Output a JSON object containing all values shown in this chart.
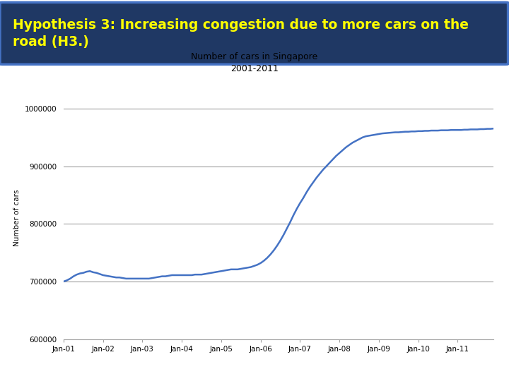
{
  "title_line1": "Number of cars in Singapore",
  "title_line2": "2001-2011",
  "ylabel": "Number of cars",
  "header_text": "Hypothesis 3: Increasing congestion due to more cars on the\nroad (H3.)",
  "header_bg_color": "#1F3864",
  "header_border_color": "#4472C4",
  "header_text_color": "#FFFF00",
  "line_color": "#4472C4",
  "line_width": 1.8,
  "ylim": [
    600000,
    1020000
  ],
  "yticks": [
    600000,
    700000,
    800000,
    900000,
    1000000
  ],
  "xtick_labels": [
    "Jan-01",
    "Jan-02",
    "Jan-03",
    "Jan-04",
    "Jan-05",
    "Jan-06",
    "Jan-07",
    "Jan-08",
    "Jan-09",
    "Jan-10",
    "Jan-11"
  ],
  "x_values": [
    0,
    1,
    2,
    3,
    4,
    5,
    6,
    7,
    8,
    9,
    10,
    11,
    12,
    13,
    14,
    15,
    16,
    17,
    18,
    19,
    20,
    21,
    22,
    23,
    24,
    25,
    26,
    27,
    28,
    29,
    30,
    31,
    32,
    33,
    34,
    35,
    36,
    37,
    38,
    39,
    40,
    41,
    42,
    43,
    44,
    45,
    46,
    47,
    48,
    49,
    50,
    51,
    52,
    53,
    54,
    55,
    56,
    57,
    58,
    59,
    60,
    61,
    62,
    63,
    64,
    65,
    66,
    67,
    68,
    69,
    70,
    71,
    72,
    73,
    74,
    75,
    76,
    77,
    78,
    79,
    80,
    81,
    82,
    83,
    84,
    85,
    86,
    87,
    88,
    89,
    90,
    91,
    92,
    93,
    94,
    95,
    96,
    97,
    98,
    99,
    100,
    101,
    102,
    103,
    104,
    105,
    106,
    107,
    108,
    109,
    110,
    111,
    112,
    113,
    114,
    115,
    116,
    117,
    118,
    119,
    120,
    121,
    122,
    123,
    124,
    125,
    126,
    127,
    128,
    129,
    130,
    131
  ],
  "y_values": [
    700000,
    702000,
    705000,
    709000,
    712000,
    714000,
    715000,
    717000,
    718000,
    716000,
    715000,
    713000,
    711000,
    710000,
    709000,
    708000,
    707000,
    707000,
    706000,
    705000,
    705000,
    705000,
    705000,
    705000,
    705000,
    705000,
    705000,
    706000,
    707000,
    708000,
    709000,
    709000,
    710000,
    711000,
    711000,
    711000,
    711000,
    711000,
    711000,
    711000,
    712000,
    712000,
    712000,
    713000,
    714000,
    715000,
    716000,
    717000,
    718000,
    719000,
    720000,
    721000,
    721000,
    721000,
    722000,
    723000,
    724000,
    725000,
    727000,
    729000,
    732000,
    736000,
    741000,
    747000,
    754000,
    762000,
    771000,
    781000,
    792000,
    803000,
    815000,
    826000,
    836000,
    845000,
    855000,
    864000,
    872000,
    880000,
    887000,
    894000,
    900000,
    906000,
    912000,
    918000,
    923000,
    928000,
    933000,
    937000,
    941000,
    944000,
    947000,
    950000,
    952000,
    953000,
    954000,
    955000,
    956000,
    957000,
    957500,
    958000,
    958500,
    959000,
    959000,
    959500,
    960000,
    960000,
    960500,
    960500,
    961000,
    961000,
    961500,
    961500,
    962000,
    962000,
    962000,
    962500,
    962500,
    962500,
    963000,
    963000,
    963000,
    963000,
    963500,
    963500,
    964000,
    964000,
    964000,
    964500,
    964500,
    965000,
    965000,
    965500
  ],
  "bg_color": "#FFFFFF",
  "grid_color": "#A0A0A0",
  "tick_label_fontsize": 7.5,
  "title_fontsize": 9,
  "ylabel_fontsize": 7.5,
  "header_fontsize": 13.5
}
